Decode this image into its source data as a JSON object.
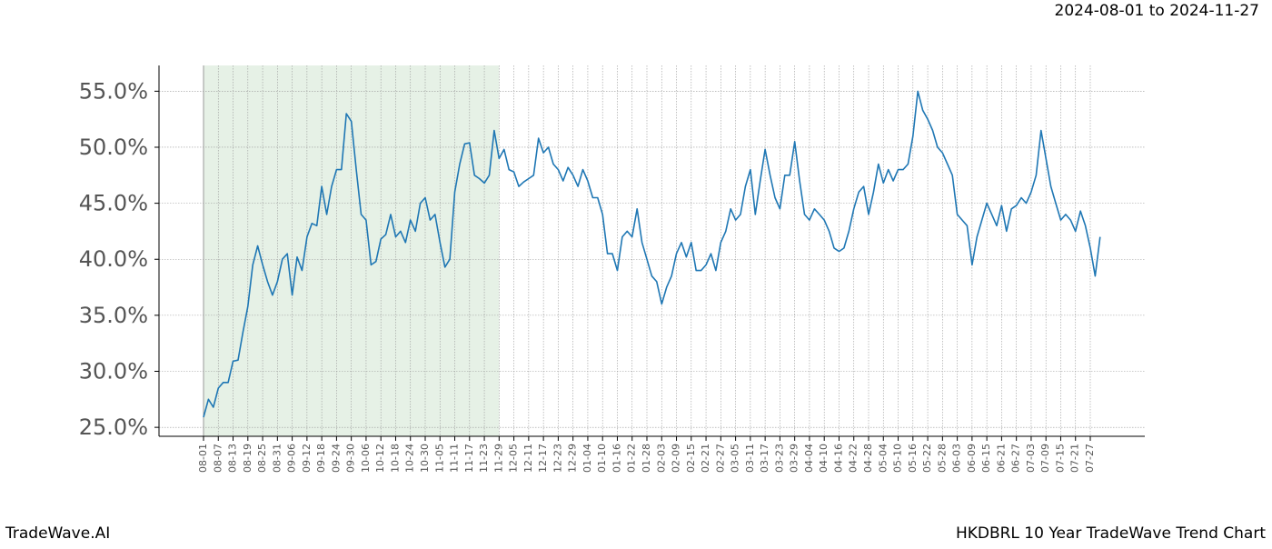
{
  "chart_data": {
    "type": "line",
    "date_range": "2024-08-01 to 2024-11-27",
    "watermark": "TradeWave.AI",
    "title": "HKDBRL 10 Year TradeWave Trend Chart",
    "categories": [
      "08-01",
      null,
      null,
      "08-07",
      null,
      null,
      "08-13",
      null,
      null,
      "08-19",
      null,
      null,
      "08-25",
      null,
      null,
      "08-31",
      null,
      null,
      "09-06",
      null,
      null,
      "09-12",
      null,
      null,
      "09-18",
      null,
      null,
      "09-24",
      null,
      null,
      "09-30",
      null,
      null,
      "10-06",
      null,
      null,
      "10-12",
      null,
      null,
      "10-18",
      null,
      null,
      "10-24",
      null,
      null,
      "10-30",
      null,
      null,
      "11-05",
      null,
      null,
      "11-11",
      null,
      null,
      "11-17",
      null,
      null,
      "11-23",
      null,
      null,
      "11-29",
      null,
      null,
      "12-05",
      null,
      null,
      "12-11",
      null,
      null,
      "12-17",
      null,
      null,
      "12-23",
      null,
      null,
      "12-29",
      null,
      null,
      "01-04",
      null,
      null,
      "01-10",
      null,
      null,
      "01-16",
      null,
      null,
      "01-22",
      null,
      null,
      "01-28",
      null,
      null,
      "02-03",
      null,
      null,
      "02-09",
      null,
      null,
      "02-15",
      null,
      null,
      "02-21",
      null,
      null,
      "02-27",
      null,
      null,
      "03-05",
      null,
      null,
      "03-11",
      null,
      null,
      "03-17",
      null,
      null,
      "03-23",
      null,
      null,
      "03-29",
      null,
      null,
      "04-04",
      null,
      null,
      "04-10",
      null,
      null,
      "04-16",
      null,
      null,
      "04-22",
      null,
      null,
      "04-28",
      null,
      null,
      "05-04",
      null,
      null,
      "05-10",
      null,
      null,
      "05-16",
      null,
      null,
      "05-22",
      null,
      null,
      "05-28",
      null,
      null,
      "06-03",
      null,
      null,
      "06-09",
      null,
      null,
      "06-15",
      null,
      null,
      "06-21",
      null,
      null,
      "06-27",
      null,
      null,
      "07-03",
      null,
      null,
      "07-09",
      null,
      null,
      "07-15",
      null,
      null,
      "07-21",
      null,
      null,
      "07-27",
      null,
      null
    ],
    "values": [
      25.9,
      27.5,
      26.8,
      28.5,
      29.0,
      29.0,
      30.9,
      31.0,
      33.5,
      35.8,
      39.5,
      41.2,
      39.5,
      38.0,
      36.8,
      38.0,
      40.0,
      40.5,
      36.8,
      40.2,
      39.0,
      42.0,
      43.2,
      43.0,
      46.5,
      44.0,
      46.5,
      48.0,
      48.0,
      53.0,
      52.3,
      48.0,
      44.0,
      43.5,
      39.5,
      39.8,
      41.8,
      42.2,
      44.0,
      42.0,
      42.5,
      41.5,
      43.5,
      42.5,
      45.0,
      45.5,
      43.5,
      44.0,
      41.5,
      39.3,
      40.0,
      46.0,
      48.5,
      50.3,
      50.4,
      47.5,
      47.2,
      46.8,
      47.5,
      51.5,
      49.0,
      49.8,
      48.0,
      47.8,
      46.5,
      46.9,
      47.2,
      47.5,
      50.8,
      49.5,
      50.0,
      48.5,
      48.0,
      47.0,
      48.2,
      47.5,
      46.5,
      48.0,
      47.0,
      45.5,
      45.5,
      44.0,
      40.5,
      40.5,
      39.0,
      42.0,
      42.5,
      42.0,
      44.5,
      41.5,
      40.0,
      38.5,
      38.0,
      36.0,
      37.5,
      38.5,
      40.5,
      41.5,
      40.2,
      41.5,
      39.0,
      39.0,
      39.5,
      40.5,
      39.0,
      41.5,
      42.5,
      44.5,
      43.5,
      44.0,
      46.5,
      48.0,
      44.0,
      47.0,
      49.8,
      47.5,
      45.5,
      44.5,
      47.5,
      47.5,
      50.5,
      47.0,
      44.0,
      43.5,
      44.5,
      44.0,
      43.5,
      42.5,
      41.0,
      40.7,
      41.0,
      42.5,
      44.5,
      46.0,
      46.5,
      44.0,
      46.0,
      48.5,
      46.8,
      48.0,
      47.0,
      48.0,
      48.0,
      48.5,
      51.0,
      55.0,
      53.3,
      52.5,
      51.5,
      50.0,
      49.5,
      48.5,
      47.5,
      44.0,
      43.5,
      43.0,
      39.5,
      42.0,
      43.5,
      45.0,
      44.0,
      43.0,
      44.8,
      42.5,
      44.5,
      44.8,
      45.5,
      45.0,
      46.0,
      47.5,
      51.5,
      49.0,
      46.5,
      45.0,
      43.5,
      44.0,
      43.5,
      42.5,
      44.3,
      43.0,
      41.0,
      38.5,
      42.0
    ],
    "color": "#1f77b4",
    "shaded_span": [
      0,
      60
    ],
    "shade_color": "#e6f1e6",
    "ylim": [
      24.2,
      57.3
    ],
    "yticks": [
      {
        "value": 25,
        "label": "25.0%"
      },
      {
        "value": 30,
        "label": "30.0%"
      },
      {
        "value": 35,
        "label": "35.0%"
      },
      {
        "value": 40,
        "label": "40.0%"
      },
      {
        "value": 45,
        "label": "45.0%"
      },
      {
        "value": 50,
        "label": "50.0%"
      },
      {
        "value": 55,
        "label": "55.0%"
      }
    ],
    "grid": true
  }
}
